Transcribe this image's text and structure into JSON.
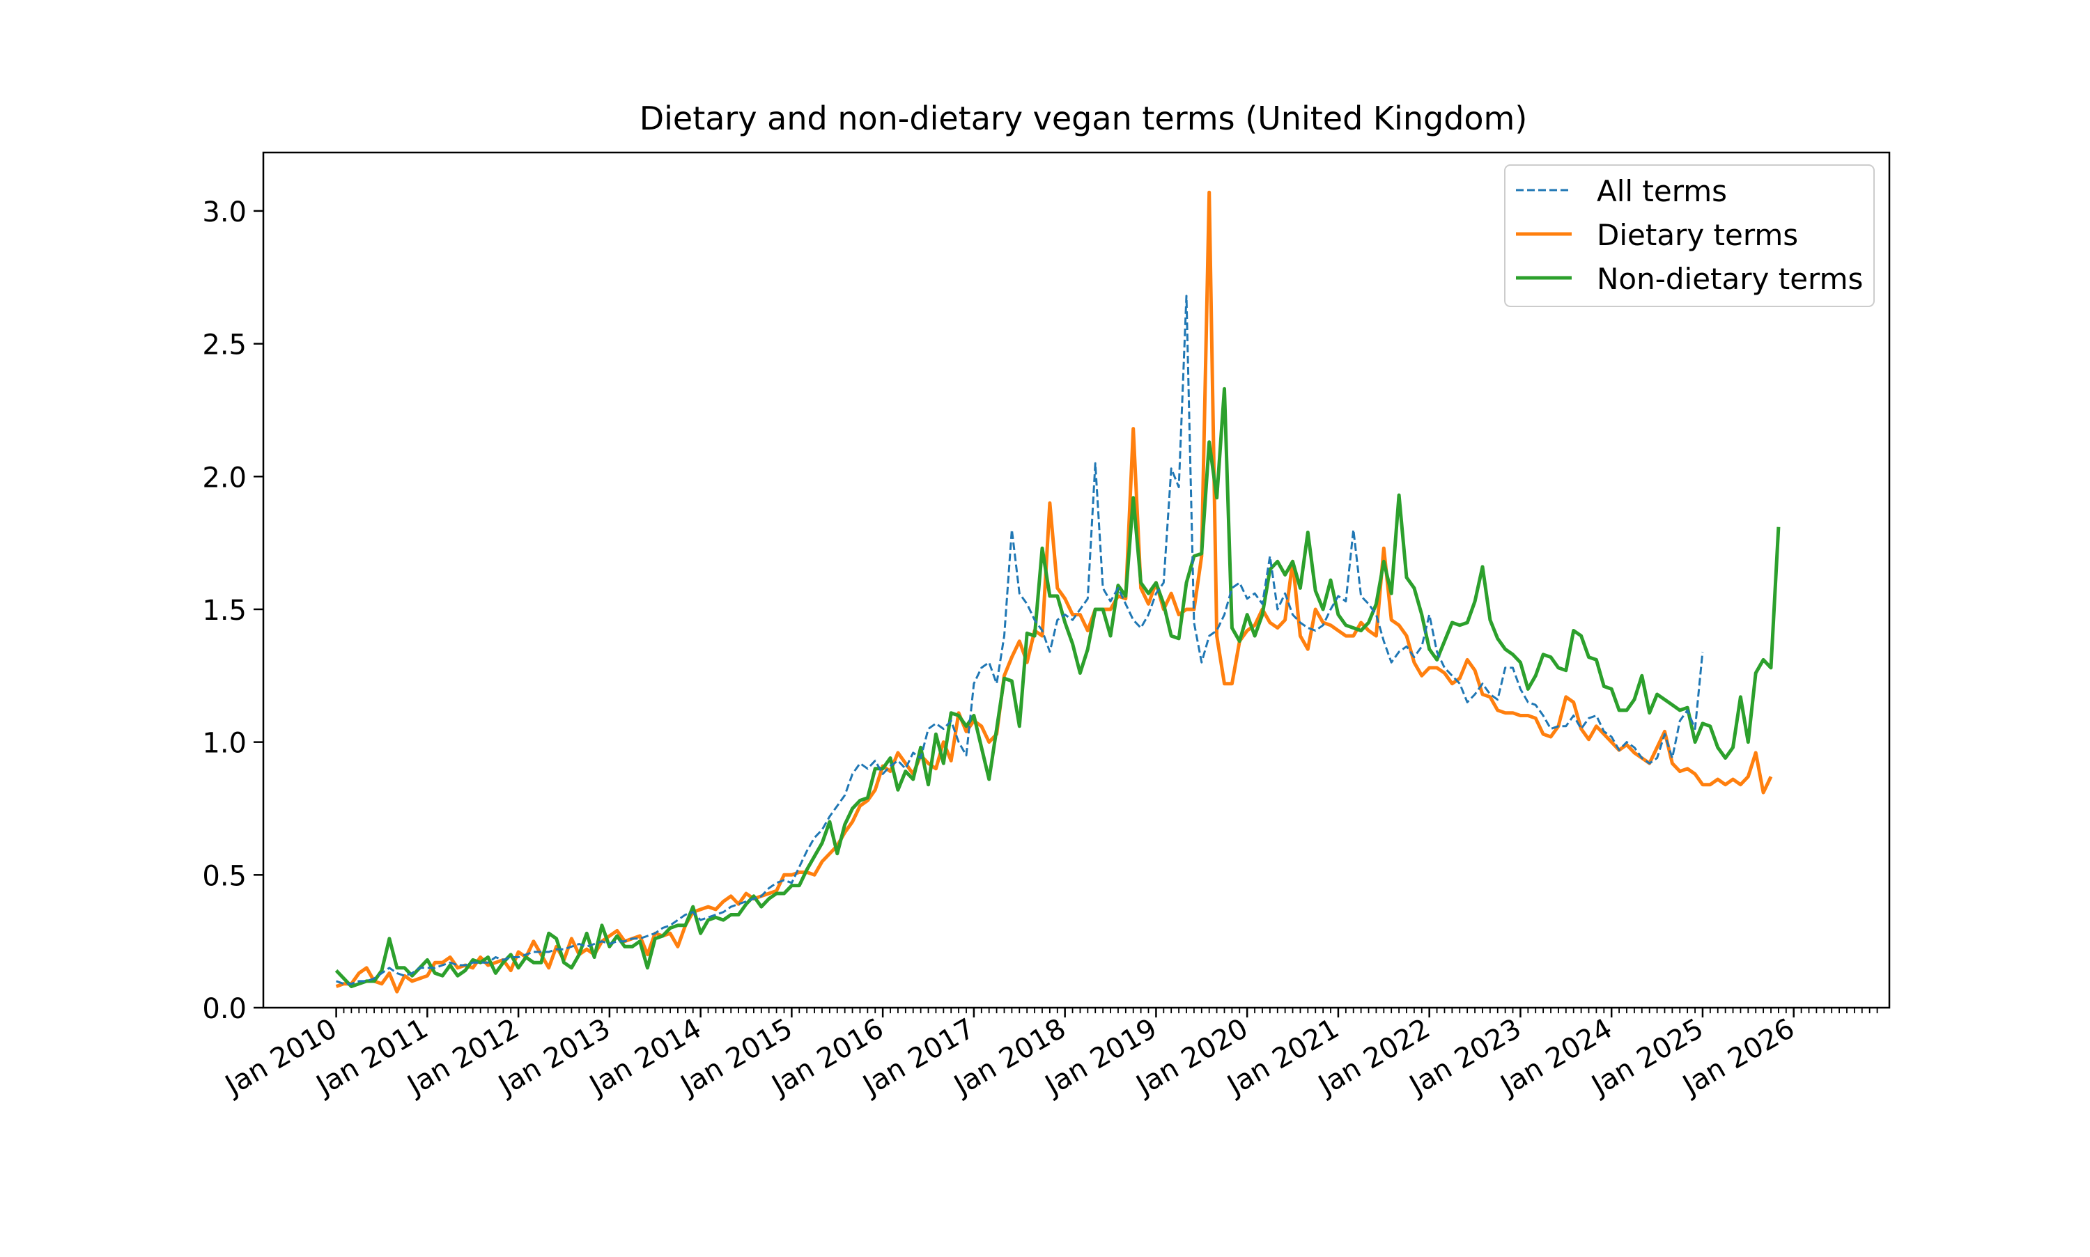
{
  "chart_data": {
    "type": "line",
    "title": "Dietary and non-dietary vegan terms (United Kingdom)",
    "xlabel": "",
    "ylabel": "",
    "xlim": [
      2009.2,
      2027.05
    ],
    "ylim": [
      0,
      3.22
    ],
    "grid": false,
    "legend_position": "top-right",
    "x_tick_labels": [
      "Jan 2010",
      "Jan 2011",
      "Jan 2012",
      "Jan 2013",
      "Jan 2014",
      "Jan 2015",
      "Jan 2016",
      "Jan 2017",
      "Jan 2018",
      "Jan 2019",
      "Jan 2020",
      "Jan 2021",
      "Jan 2022",
      "Jan 2023",
      "Jan 2024",
      "Jan 2025",
      "Jan 2026"
    ],
    "y_ticks": [
      0.0,
      0.5,
      1.0,
      1.5,
      2.0,
      2.5,
      3.0
    ],
    "y_tick_labels": [
      "0.0",
      "0.5",
      "1.0",
      "1.5",
      "2.0",
      "2.5",
      "3.0"
    ],
    "x_start_year": 2010,
    "x_step_months": 1,
    "colors": {
      "all": "#1f77b4",
      "dietary": "#ff7f0e",
      "non_dietary": "#2ca02c"
    },
    "series": [
      {
        "name": "All terms",
        "style": "dashed",
        "values": [
          0.1,
          0.09,
          0.09,
          0.1,
          0.1,
          0.11,
          0.13,
          0.15,
          0.13,
          0.12,
          0.13,
          0.15,
          0.15,
          0.15,
          0.16,
          0.17,
          0.16,
          0.16,
          0.17,
          0.17,
          0.17,
          0.19,
          0.18,
          0.19,
          0.19,
          0.2,
          0.21,
          0.21,
          0.21,
          0.22,
          0.22,
          0.23,
          0.24,
          0.23,
          0.24,
          0.25,
          0.24,
          0.25,
          0.25,
          0.26,
          0.26,
          0.27,
          0.28,
          0.3,
          0.31,
          0.33,
          0.35,
          0.36,
          0.33,
          0.34,
          0.35,
          0.36,
          0.38,
          0.39,
          0.4,
          0.41,
          0.42,
          0.45,
          0.47,
          0.48,
          0.47,
          0.53,
          0.59,
          0.64,
          0.67,
          0.72,
          0.76,
          0.8,
          0.88,
          0.92,
          0.9,
          0.93,
          0.88,
          0.91,
          0.93,
          0.9,
          0.96,
          0.94,
          1.05,
          1.07,
          1.05,
          1.08,
          1.0,
          0.95,
          1.22,
          1.28,
          1.3,
          1.22,
          1.4,
          1.8,
          1.56,
          1.52,
          1.46,
          1.42,
          1.34,
          1.46,
          1.48,
          1.46,
          1.5,
          1.54,
          2.05,
          1.58,
          1.53,
          1.58,
          1.52,
          1.46,
          1.43,
          1.48,
          1.56,
          1.6,
          2.03,
          1.96,
          2.68,
          1.45,
          1.3,
          1.4,
          1.42,
          1.48,
          1.58,
          1.6,
          1.54,
          1.56,
          1.52,
          1.7,
          1.5,
          1.56,
          1.48,
          1.45,
          1.43,
          1.42,
          1.44,
          1.5,
          1.55,
          1.53,
          1.8,
          1.55,
          1.52,
          1.48,
          1.38,
          1.3,
          1.34,
          1.36,
          1.32,
          1.36,
          1.48,
          1.34,
          1.28,
          1.25,
          1.22,
          1.15,
          1.18,
          1.22,
          1.18,
          1.16,
          1.28,
          1.28,
          1.2,
          1.15,
          1.14,
          1.1,
          1.05,
          1.06,
          1.06,
          1.1,
          1.05,
          1.09,
          1.1,
          1.04,
          1.02,
          0.97,
          1.0,
          0.98,
          0.94,
          0.92,
          0.94,
          1.03,
          0.94,
          1.08,
          1.12,
          1.05,
          1.34
        ]
      },
      {
        "name": "Dietary terms",
        "style": "solid",
        "values": [
          0.08,
          0.09,
          0.09,
          0.13,
          0.15,
          0.1,
          0.09,
          0.13,
          0.06,
          0.12,
          0.1,
          0.11,
          0.12,
          0.17,
          0.17,
          0.19,
          0.15,
          0.16,
          0.15,
          0.19,
          0.16,
          0.17,
          0.18,
          0.14,
          0.21,
          0.19,
          0.25,
          0.2,
          0.15,
          0.23,
          0.18,
          0.26,
          0.2,
          0.22,
          0.2,
          0.25,
          0.27,
          0.29,
          0.25,
          0.26,
          0.27,
          0.2,
          0.28,
          0.27,
          0.28,
          0.23,
          0.31,
          0.36,
          0.37,
          0.38,
          0.37,
          0.4,
          0.42,
          0.39,
          0.43,
          0.41,
          0.42,
          0.43,
          0.44,
          0.5,
          0.5,
          0.51,
          0.51,
          0.5,
          0.55,
          0.58,
          0.61,
          0.66,
          0.7,
          0.76,
          0.78,
          0.82,
          0.91,
          0.89,
          0.96,
          0.92,
          0.88,
          0.95,
          0.92,
          0.9,
          1.0,
          0.93,
          1.11,
          1.04,
          1.08,
          1.06,
          1.0,
          1.03,
          1.25,
          1.32,
          1.38,
          1.3,
          1.42,
          1.4,
          1.9,
          1.58,
          1.54,
          1.48,
          1.48,
          1.42,
          1.5,
          1.5,
          1.5,
          1.55,
          1.54,
          2.18,
          1.58,
          1.52,
          1.6,
          1.5,
          1.56,
          1.48,
          1.5,
          1.5,
          1.7,
          3.07,
          1.4,
          1.22,
          1.22,
          1.38,
          1.42,
          1.44,
          1.5,
          1.45,
          1.43,
          1.46,
          1.68,
          1.4,
          1.35,
          1.5,
          1.45,
          1.44,
          1.42,
          1.4,
          1.4,
          1.45,
          1.42,
          1.4,
          1.73,
          1.46,
          1.44,
          1.4,
          1.3,
          1.25,
          1.28,
          1.28,
          1.26,
          1.22,
          1.24,
          1.31,
          1.27,
          1.18,
          1.17,
          1.12,
          1.11,
          1.11,
          1.1,
          1.1,
          1.09,
          1.03,
          1.02,
          1.06,
          1.17,
          1.15,
          1.05,
          1.01,
          1.06,
          1.03,
          1.0,
          0.97,
          0.99,
          0.96,
          0.94,
          0.92,
          0.98,
          1.04,
          0.92,
          0.89,
          0.9,
          0.88,
          0.84,
          0.84,
          0.86,
          0.84,
          0.86,
          0.84,
          0.87,
          0.96,
          0.81,
          0.87
        ]
      },
      {
        "name": "Non-dietary terms",
        "style": "solid",
        "values": [
          0.14,
          0.11,
          0.08,
          0.09,
          0.1,
          0.1,
          0.14,
          0.26,
          0.15,
          0.15,
          0.12,
          0.15,
          0.18,
          0.13,
          0.12,
          0.16,
          0.12,
          0.14,
          0.18,
          0.17,
          0.19,
          0.13,
          0.17,
          0.2,
          0.15,
          0.19,
          0.17,
          0.17,
          0.28,
          0.26,
          0.17,
          0.15,
          0.2,
          0.28,
          0.19,
          0.31,
          0.23,
          0.27,
          0.23,
          0.23,
          0.25,
          0.15,
          0.26,
          0.27,
          0.3,
          0.31,
          0.31,
          0.38,
          0.28,
          0.33,
          0.34,
          0.33,
          0.35,
          0.35,
          0.39,
          0.42,
          0.38,
          0.41,
          0.43,
          0.43,
          0.46,
          0.46,
          0.52,
          0.57,
          0.62,
          0.7,
          0.58,
          0.69,
          0.75,
          0.78,
          0.79,
          0.9,
          0.9,
          0.94,
          0.82,
          0.89,
          0.86,
          0.98,
          0.84,
          1.03,
          0.92,
          1.11,
          1.1,
          1.06,
          1.1,
          0.98,
          0.86,
          1.05,
          1.24,
          1.23,
          1.06,
          1.41,
          1.4,
          1.73,
          1.55,
          1.55,
          1.45,
          1.37,
          1.26,
          1.35,
          1.5,
          1.5,
          1.4,
          1.59,
          1.55,
          1.92,
          1.6,
          1.56,
          1.6,
          1.52,
          1.4,
          1.39,
          1.6,
          1.7,
          1.71,
          2.13,
          1.92,
          2.33,
          1.43,
          1.38,
          1.48,
          1.4,
          1.48,
          1.65,
          1.68,
          1.63,
          1.68,
          1.58,
          1.79,
          1.57,
          1.5,
          1.61,
          1.48,
          1.44,
          1.43,
          1.42,
          1.45,
          1.52,
          1.68,
          1.56,
          1.93,
          1.62,
          1.58,
          1.48,
          1.35,
          1.31,
          1.38,
          1.45,
          1.44,
          1.45,
          1.53,
          1.66,
          1.46,
          1.39,
          1.35,
          1.33,
          1.3,
          1.2,
          1.25,
          1.33,
          1.32,
          1.28,
          1.27,
          1.42,
          1.4,
          1.32,
          1.31,
          1.21,
          1.2,
          1.12,
          1.12,
          1.16,
          1.25,
          1.11,
          1.18,
          1.16,
          1.14,
          1.12,
          1.13,
          1.0,
          1.07,
          1.06,
          0.98,
          0.94,
          0.98,
          1.17,
          1.0,
          1.26,
          1.31,
          1.28,
          1.81
        ]
      }
    ]
  }
}
